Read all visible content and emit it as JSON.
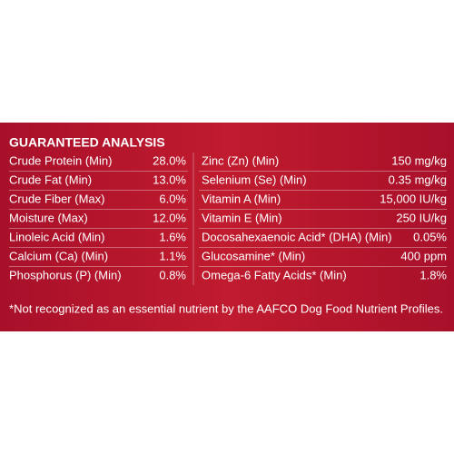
{
  "panel": {
    "title": "GUARANTEED ANALYSIS",
    "rows": [
      [
        "Crude Protein (Min)",
        "28.0%",
        "Zinc (Zn) (Min)",
        "150 mg/kg"
      ],
      [
        "Crude Fat (Min)",
        "13.0%",
        "Selenium (Se) (Min)",
        "0.35 mg/kg"
      ],
      [
        "Crude Fiber (Max)",
        "6.0%",
        "Vitamin A (Min)",
        "15,000 IU/kg"
      ],
      [
        "Moisture (Max)",
        "12.0%",
        "Vitamin E (Min)",
        "250 IU/kg"
      ],
      [
        "Linoleic Acid (Min)",
        "1.6%",
        "Docosahexaenoic Acid* (DHA) (Min)",
        "0.05%"
      ],
      [
        "Calcium (Ca) (Min)",
        "1.1%",
        "Glucosamine* (Min)",
        "400 ppm"
      ],
      [
        "Phosphorus (P) (Min)",
        "0.8%",
        "Omega-6 Fatty Acids* (Min)",
        "1.8%"
      ]
    ],
    "footnote": "*Not recognized as an essential nutrient by the AAFCO Dog Food Nutrient Profiles."
  }
}
